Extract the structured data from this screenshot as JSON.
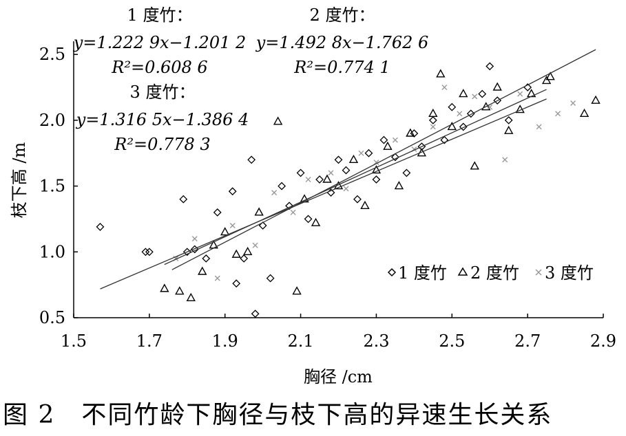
{
  "caption": "图 2　不同竹龄下胸径与枝下高的异速生长关系",
  "chart_data": {
    "type": "scatter",
    "xlabel": "胸径 /cm",
    "ylabel": "枝下高 /m",
    "xlim": [
      1.5,
      2.9
    ],
    "ylim": [
      0.5,
      2.6
    ],
    "x_ticks": [
      "1.5",
      "1.7",
      "1.9",
      "2.1",
      "2.3",
      "2.5",
      "2.7",
      "2.9"
    ],
    "y_ticks": [
      "0.5",
      "1.0",
      "1.5",
      "2.0",
      "2.5"
    ],
    "grid": false,
    "legend_position": "bottom-right",
    "annotations": [
      {
        "title": "1 度竹：",
        "equation": "y=1.222 9x−1.201 2",
        "r2": "R²=0.608 6"
      },
      {
        "title": "2 度竹：",
        "equation": "y=1.492 8x−1.762 6",
        "r2": "R²=0.774 1"
      },
      {
        "title": "3 度竹：",
        "equation": "y=1.316 5x−1.386 4",
        "r2": "R²=0.778 3"
      }
    ],
    "series": [
      {
        "name": "1 度竹",
        "marker": "diamond",
        "color": "#000000",
        "fit": {
          "slope": 1.2229,
          "intercept": -1.2012,
          "x_range": [
            1.57,
            2.75
          ]
        },
        "points": [
          [
            1.57,
            1.19
          ],
          [
            1.69,
            1.0
          ],
          [
            1.7,
            1.0
          ],
          [
            1.79,
            1.4
          ],
          [
            1.8,
            1.0
          ],
          [
            1.82,
            1.02
          ],
          [
            1.85,
            0.95
          ],
          [
            1.88,
            1.3
          ],
          [
            1.92,
            1.46
          ],
          [
            1.93,
            0.76
          ],
          [
            1.95,
            0.95
          ],
          [
            1.97,
            1.7
          ],
          [
            1.98,
            0.53
          ],
          [
            2.0,
            1.2
          ],
          [
            2.02,
            0.8
          ],
          [
            2.05,
            1.5
          ],
          [
            2.07,
            1.35
          ],
          [
            2.1,
            1.6
          ],
          [
            2.12,
            1.25
          ],
          [
            2.15,
            1.55
          ],
          [
            2.18,
            1.45
          ],
          [
            2.2,
            1.7
          ],
          [
            2.22,
            1.62
          ],
          [
            2.25,
            1.4
          ],
          [
            2.28,
            1.75
          ],
          [
            2.3,
            1.55
          ],
          [
            2.32,
            1.85
          ],
          [
            2.35,
            1.72
          ],
          [
            2.38,
            1.6
          ],
          [
            2.4,
            1.9
          ],
          [
            2.42,
            1.8
          ],
          [
            2.45,
            2.0
          ],
          [
            2.48,
            1.85
          ],
          [
            2.5,
            2.1
          ],
          [
            2.53,
            1.95
          ],
          [
            2.55,
            2.05
          ],
          [
            2.58,
            2.2
          ],
          [
            2.6,
            2.41
          ],
          [
            2.62,
            2.15
          ],
          [
            2.65,
            2.0
          ],
          [
            2.7,
            2.25
          ]
        ]
      },
      {
        "name": "2 度竹",
        "marker": "triangle",
        "color": "#000000",
        "fit": {
          "slope": 1.4928,
          "intercept": -1.7626,
          "x_range": [
            1.76,
            2.88
          ]
        },
        "points": [
          [
            1.74,
            0.72
          ],
          [
            1.78,
            0.7
          ],
          [
            1.81,
            0.65
          ],
          [
            1.84,
            0.85
          ],
          [
            1.87,
            1.05
          ],
          [
            1.9,
            1.15
          ],
          [
            1.93,
            0.98
          ],
          [
            1.96,
            1.0
          ],
          [
            1.99,
            1.3
          ],
          [
            2.04,
            1.99
          ],
          [
            2.09,
            0.7
          ],
          [
            2.11,
            1.4
          ],
          [
            2.14,
            1.22
          ],
          [
            2.17,
            1.55
          ],
          [
            2.2,
            1.5
          ],
          [
            2.24,
            1.7
          ],
          [
            2.27,
            1.35
          ],
          [
            2.3,
            1.62
          ],
          [
            2.33,
            1.8
          ],
          [
            2.36,
            1.5
          ],
          [
            2.39,
            1.9
          ],
          [
            2.42,
            1.75
          ],
          [
            2.45,
            2.05
          ],
          [
            2.47,
            2.35
          ],
          [
            2.5,
            1.95
          ],
          [
            2.53,
            2.2
          ],
          [
            2.56,
            1.65
          ],
          [
            2.59,
            2.1
          ],
          [
            2.62,
            2.25
          ],
          [
            2.65,
            1.92
          ],
          [
            2.68,
            2.08
          ],
          [
            2.71,
            2.2
          ],
          [
            2.75,
            2.3
          ],
          [
            2.76,
            2.33
          ],
          [
            2.85,
            2.05
          ],
          [
            2.88,
            2.15
          ]
        ]
      },
      {
        "name": "3 度竹",
        "marker": "cross",
        "color": "#999999",
        "fit": {
          "slope": 1.3165,
          "intercept": -1.3864,
          "x_range": [
            1.74,
            2.75
          ]
        },
        "points": [
          [
            1.77,
            0.95
          ],
          [
            1.82,
            1.1
          ],
          [
            1.88,
            0.8
          ],
          [
            1.92,
            1.2
          ],
          [
            1.98,
            1.05
          ],
          [
            2.03,
            1.45
          ],
          [
            2.08,
            1.3
          ],
          [
            2.12,
            1.55
          ],
          [
            2.18,
            1.6
          ],
          [
            2.22,
            1.48
          ],
          [
            2.26,
            1.75
          ],
          [
            2.3,
            1.68
          ],
          [
            2.35,
            1.85
          ],
          [
            2.4,
            1.78
          ],
          [
            2.45,
            1.95
          ],
          [
            2.48,
            2.25
          ],
          [
            2.52,
            2.05
          ],
          [
            2.56,
            2.18
          ],
          [
            2.6,
            2.1
          ],
          [
            2.64,
            1.7
          ],
          [
            2.68,
            2.2
          ],
          [
            2.73,
            1.95
          ],
          [
            2.78,
            2.05
          ],
          [
            2.82,
            2.13
          ]
        ]
      }
    ]
  }
}
